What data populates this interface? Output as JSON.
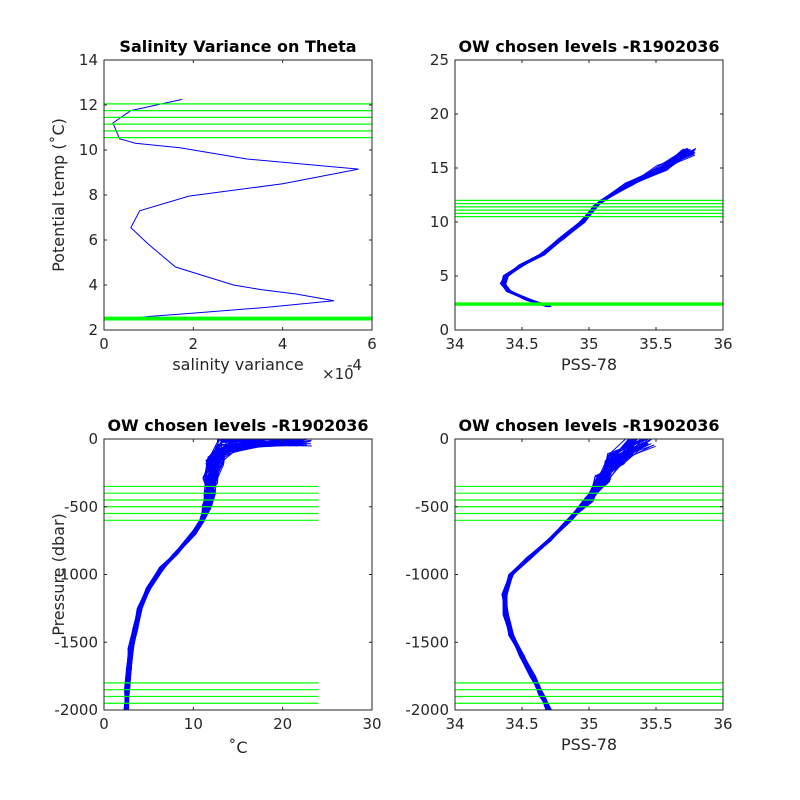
{
  "colors": {
    "profiles": "#0000ff",
    "levels": "#00ff00",
    "axis": "#262626"
  },
  "chart_data": [
    {
      "type": "line",
      "title": "Salinity Variance on Theta",
      "xlabel": "salinity variance",
      "xexponent_label": "×10",
      "xexponent_power": "-4",
      "ylabel": "Potential temp (˚C)",
      "xlim": [
        0,
        6
      ],
      "ylim": [
        2,
        14
      ],
      "xticks": [
        0,
        2,
        4,
        6
      ],
      "xtick_labels": [
        "0",
        "2",
        "4",
        "6"
      ],
      "yticks": [
        2,
        4,
        6,
        8,
        10,
        12,
        14
      ],
      "ytick_labels": [
        "2",
        "4",
        "6",
        "8",
        "10",
        "12",
        "14"
      ],
      "series": [
        {
          "x": [
            1.75,
            0.6,
            0.2,
            0.35,
            0.7,
            1.7,
            3.2,
            5.7,
            4.0,
            1.9,
            0.8,
            0.6,
            1.0,
            1.6,
            2.9,
            3.5,
            4.3,
            5.15,
            3.6,
            2.0,
            1.0,
            0.5
          ],
          "y": [
            12.25,
            11.75,
            11.2,
            10.5,
            10.3,
            10.1,
            9.6,
            9.15,
            8.5,
            7.95,
            7.3,
            6.55,
            5.8,
            4.8,
            4.0,
            3.8,
            3.6,
            3.3,
            3.0,
            2.75,
            2.6,
            2.5
          ]
        }
      ],
      "levels_y": [
        2.45,
        2.48,
        2.51,
        2.54,
        2.57,
        10.55,
        10.85,
        11.15,
        11.45,
        11.75,
        12.05
      ],
      "levels_x": [
        0,
        6
      ]
    },
    {
      "type": "line",
      "title": "OW chosen levels -R1902036",
      "xlabel": "PSS-78",
      "ylabel": "",
      "xlim": [
        34,
        36
      ],
      "ylim": [
        0,
        25
      ],
      "xticks": [
        34,
        34.5,
        35,
        35.5,
        36
      ],
      "xtick_labels": [
        "34",
        "34.5",
        "35",
        "35.5",
        "36"
      ],
      "yticks": [
        0,
        5,
        10,
        15,
        20,
        25
      ],
      "ytick_labels": [
        "0",
        "5",
        "10",
        "15",
        "20",
        "25"
      ],
      "series": [
        {
          "x": [
            34.7,
            34.55,
            34.4,
            34.36,
            34.38,
            34.5,
            34.65,
            34.8,
            34.95,
            35.05,
            35.1,
            35.3,
            35.55,
            35.75
          ],
          "y": [
            2.2,
            2.8,
            3.6,
            4.3,
            5.0,
            6.0,
            7.0,
            8.5,
            10.0,
            11.5,
            12.0,
            13.5,
            15.0,
            16.5
          ]
        }
      ],
      "levels_y": [
        2.3,
        2.4,
        2.5,
        10.5,
        10.8,
        11.1,
        11.4,
        11.7,
        12.0
      ],
      "levels_x": [
        34,
        36
      ]
    },
    {
      "type": "line",
      "title": "OW chosen levels -R1902036",
      "xlabel": "˚C",
      "ylabel": "Pressure (dbar)",
      "xlim": [
        0,
        30
      ],
      "ylim": [
        -2000,
        0
      ],
      "xticks": [
        0,
        10,
        20,
        30
      ],
      "xtick_labels": [
        "0",
        "10",
        "20",
        "30"
      ],
      "yticks": [
        -2000,
        -1500,
        -1000,
        -500,
        0
      ],
      "ytick_labels": [
        "-2000",
        "-1500",
        "-1000",
        "-500",
        "0"
      ],
      "series": [
        {
          "x": [
            22,
            14,
            12.5,
            12,
            11.8,
            11.5,
            11,
            10,
            8,
            6.5,
            5,
            4,
            3.5,
            3,
            2.8,
            2.6,
            2.5
          ],
          "y": [
            0,
            -50,
            -150,
            -300,
            -400,
            -500,
            -600,
            -700,
            -850,
            -950,
            -1100,
            -1250,
            -1400,
            -1550,
            -1700,
            -1850,
            -2000
          ]
        }
      ],
      "levels_y": [
        -350,
        -400,
        -450,
        -500,
        -550,
        -600,
        -1800,
        -1850,
        -1900,
        -1950
      ],
      "levels_x": [
        0,
        24
      ]
    },
    {
      "type": "line",
      "title": "OW chosen levels -R1902036",
      "xlabel": "PSS-78",
      "ylabel": "",
      "xlim": [
        34,
        36
      ],
      "ylim": [
        -2000,
        0
      ],
      "xticks": [
        34,
        34.5,
        35,
        35.5,
        36
      ],
      "xtick_labels": [
        "34",
        "34.5",
        "35",
        "35.5",
        "36"
      ],
      "yticks": [
        -2000,
        -1500,
        -1000,
        -500,
        0
      ],
      "ytick_labels": [
        "-2000",
        "-1500",
        "-1000",
        "-500",
        "0"
      ],
      "series": [
        {
          "x": [
            35.4,
            35.2,
            35.1,
            35.0,
            34.85,
            34.7,
            34.55,
            34.42,
            34.37,
            34.38,
            34.42,
            34.5,
            34.58,
            34.65,
            34.7
          ],
          "y": [
            0,
            -150,
            -300,
            -450,
            -600,
            -750,
            -880,
            -1000,
            -1150,
            -1300,
            -1450,
            -1600,
            -1750,
            -1900,
            -2000
          ]
        }
      ],
      "levels_y": [
        -350,
        -400,
        -450,
        -500,
        -550,
        -600,
        -1800,
        -1850,
        -1900,
        -1950
      ],
      "levels_x": [
        34,
        36
      ]
    }
  ]
}
